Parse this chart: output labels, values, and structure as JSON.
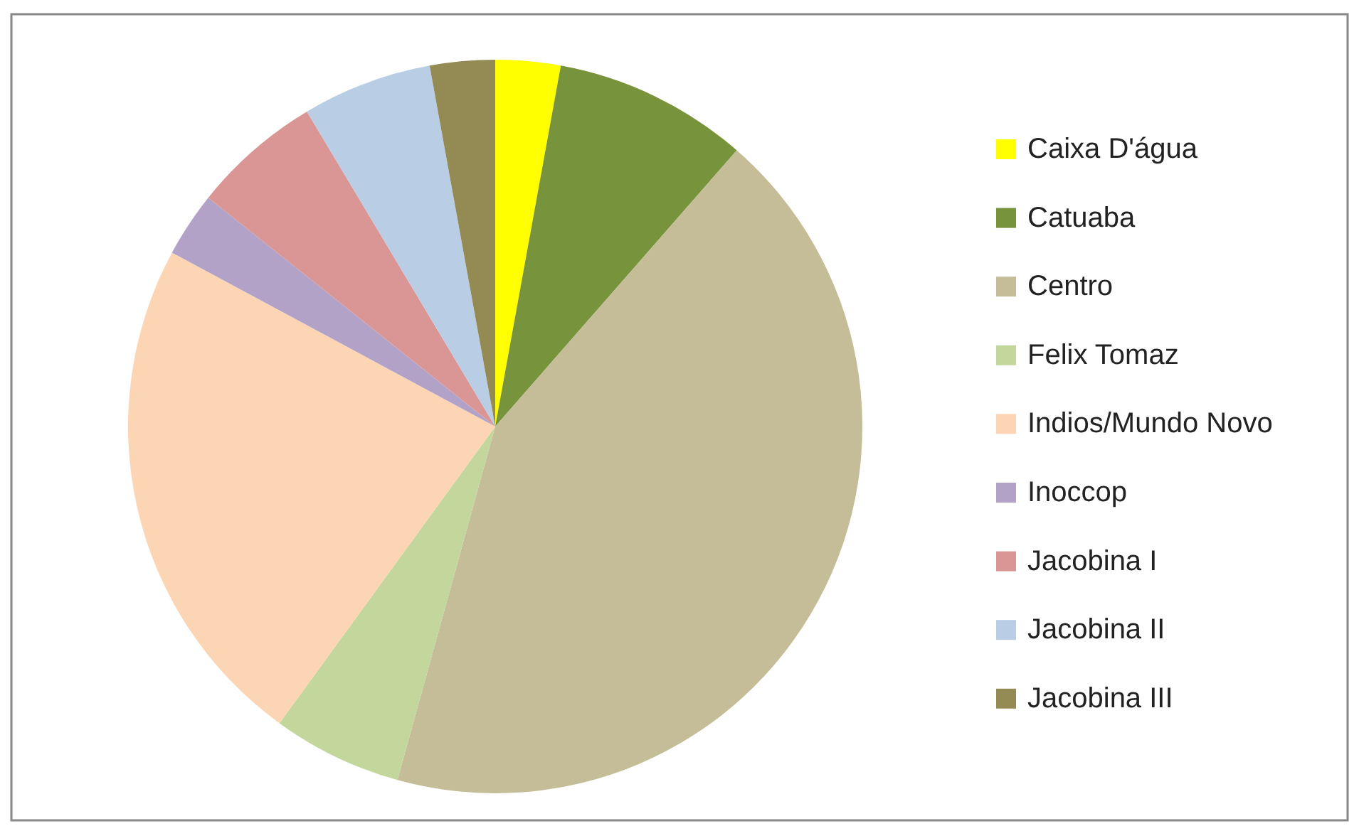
{
  "chart_data": {
    "type": "pie",
    "categories": [
      "Caixa  D'água",
      "Catuaba",
      "Centro",
      "Felix Tomaz",
      "Indios/Mundo Novo",
      "Inoccop",
      "Jacobina I",
      "Jacobina II",
      "Jacobina III"
    ],
    "values": [
      2.86,
      8.57,
      42.86,
      5.71,
      22.86,
      2.86,
      5.71,
      5.71,
      2.86
    ],
    "colors": [
      "#ffff00",
      "#77933c",
      "#c4bd97",
      "#c3d69b",
      "#fcd5b5",
      "#b3a2c7",
      "#d99694",
      "#b9cde5",
      "#948a54"
    ],
    "legend": "right"
  }
}
